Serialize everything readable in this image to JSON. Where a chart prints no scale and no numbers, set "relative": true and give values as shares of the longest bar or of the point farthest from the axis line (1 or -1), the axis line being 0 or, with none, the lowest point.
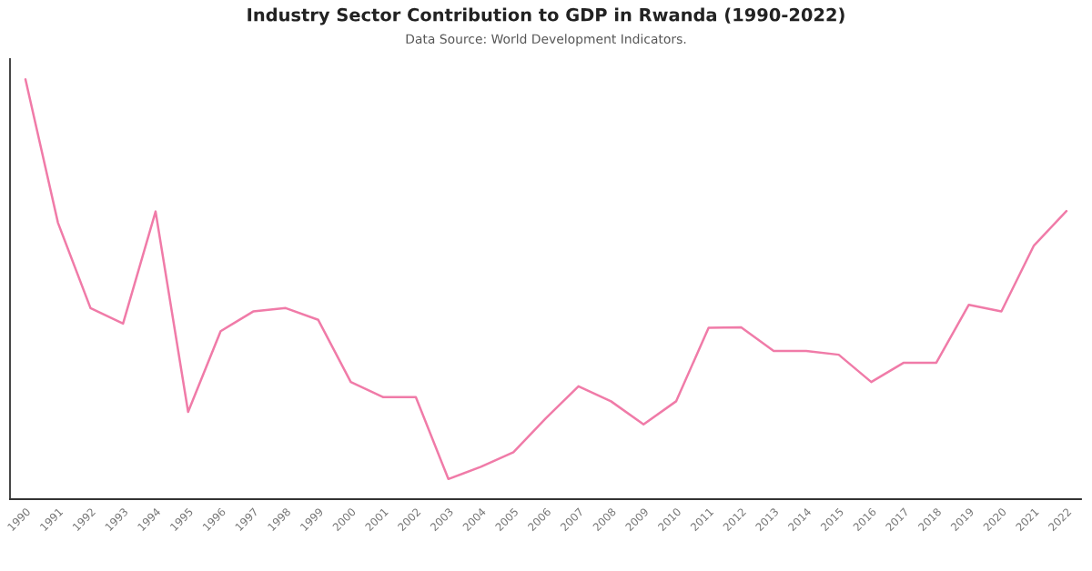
{
  "chart_data": {
    "type": "line",
    "title": "Industry Sector Contribution to GDP in Rwanda (1990-2022)",
    "subtitle": "Data Source: World Development Indicators.",
    "categories": [
      "1990",
      "1991",
      "1992",
      "1993",
      "1994",
      "1995",
      "1996",
      "1997",
      "1998",
      "1999",
      "2000",
      "2001",
      "2002",
      "2003",
      "2004",
      "2005",
      "2006",
      "2007",
      "2008",
      "2009",
      "2010",
      "2011",
      "2012",
      "2013",
      "2014",
      "2015",
      "2016",
      "2017",
      "2018",
      "2019",
      "2020",
      "2021",
      "2022"
    ],
    "relative": true,
    "series": [
      {
        "color": "#f07ba8",
        "values": [
          1,
          0.658,
          0.455,
          0.418,
          0.685,
          0.208,
          0.4,
          0.447,
          0.455,
          0.427,
          0.279,
          0.243,
          0.243,
          0.048,
          0.077,
          0.112,
          0.193,
          0.269,
          0.233,
          0.178,
          0.233,
          0.408,
          0.409,
          0.353,
          0.353,
          0.344,
          0.279,
          0.325,
          0.325,
          0.463,
          0.447,
          0.604,
          0.686
        ]
      }
    ]
  }
}
